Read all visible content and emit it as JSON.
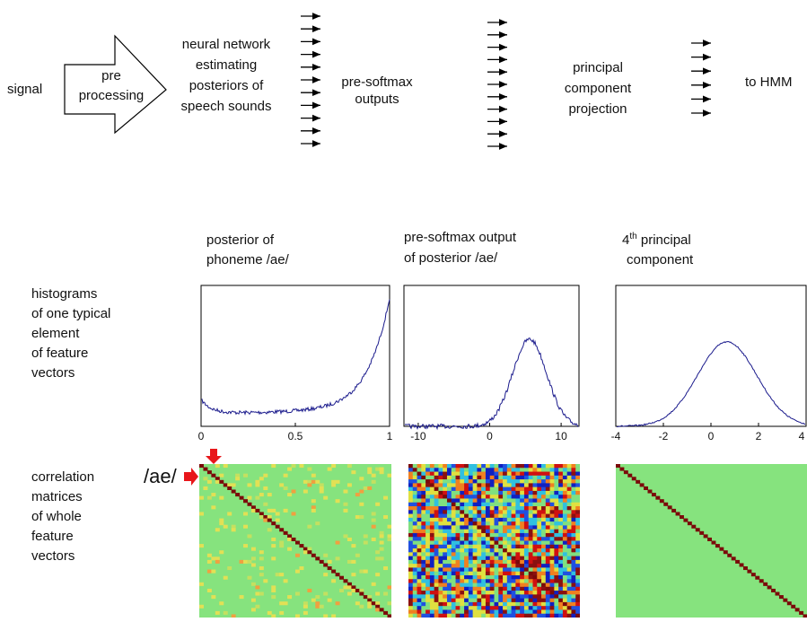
{
  "pipeline": {
    "input": "signal",
    "preprocessing": [
      "pre",
      "processing"
    ],
    "network": [
      "neural network",
      "estimating",
      "posteriors of",
      "speech sounds"
    ],
    "presoftmax": [
      "pre-softmax",
      "outputs"
    ],
    "pca": [
      "principal",
      "component",
      "projection"
    ],
    "output": "to HMM"
  },
  "rows": {
    "histograms": [
      "histograms",
      "of one typical",
      "element",
      "of feature",
      "vectors"
    ],
    "correlation": [
      "correlation",
      "matrices",
      "of whole",
      "feature",
      "vectors"
    ]
  },
  "marker": "/ae/",
  "columns": [
    {
      "title": [
        "posterior of",
        "phoneme /ae/"
      ],
      "xlim": [
        0,
        1
      ],
      "xticks": [
        0,
        {
          "value": 0.5,
          "label": "0.5"
        },
        1
      ]
    },
    {
      "title": [
        "pre-softmax output",
        "of posterior /ae/"
      ],
      "xlim": [
        -12,
        12.5
      ],
      "xticks": [
        -10,
        0,
        10
      ]
    },
    {
      "title_parts": {
        "number": "4",
        "suffix": "th",
        "rest": " principal",
        "line2": "component"
      },
      "xlim": [
        -4,
        4
      ],
      "xticks": [
        -4,
        -2,
        0,
        2,
        4
      ]
    }
  ]
}
